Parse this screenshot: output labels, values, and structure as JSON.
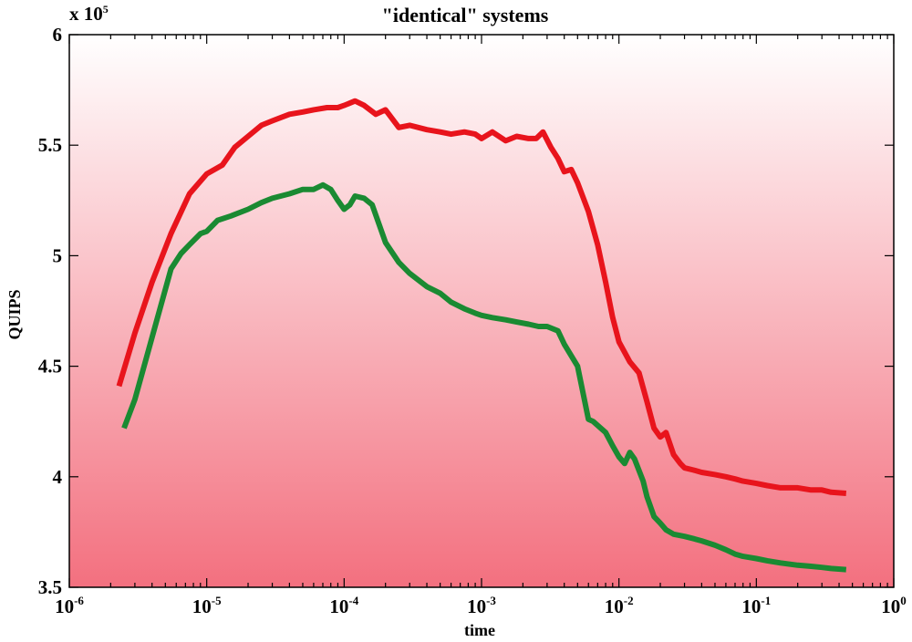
{
  "chart_data": {
    "type": "line",
    "title": "\"identical\" systems",
    "xlabel": "time",
    "ylabel": "QUIPS",
    "x_scale": "log",
    "xlim": [
      1e-06,
      1
    ],
    "ylim": [
      350000,
      600000
    ],
    "y_multiplier_label": {
      "base": "x 10",
      "exp": "5"
    },
    "x_ticks": [
      {
        "base": "10",
        "exp": "-6"
      },
      {
        "base": "10",
        "exp": "-5"
      },
      {
        "base": "10",
        "exp": "-4"
      },
      {
        "base": "10",
        "exp": "-3"
      },
      {
        "base": "10",
        "exp": "-2"
      },
      {
        "base": "10",
        "exp": "-1"
      },
      {
        "base": "10",
        "exp": "0"
      }
    ],
    "y_ticks": [
      "3.5",
      "4",
      "4.5",
      "5",
      "5.5",
      "6"
    ],
    "grid": false,
    "legend": "none",
    "background": {
      "top": "#ffffff",
      "bottom": "#f3707f"
    },
    "series": [
      {
        "color": "#e8141c",
        "x": [
          2.3e-06,
          3e-06,
          4e-06,
          5.5e-06,
          7.5e-06,
          1e-05,
          1.3e-05,
          1.6e-05,
          2e-05,
          2.5e-05,
          3e-05,
          4e-05,
          5e-05,
          6e-05,
          7.5e-05,
          9e-05,
          0.0001,
          0.00012,
          0.00014,
          0.00017,
          0.0002,
          0.00025,
          0.0003,
          0.0004,
          0.0005,
          0.0006,
          0.00075,
          0.0009,
          0.001,
          0.0012,
          0.0015,
          0.0018,
          0.0022,
          0.0025,
          0.0028,
          0.0032,
          0.0036,
          0.004,
          0.0045,
          0.005,
          0.006,
          0.007,
          0.008,
          0.009,
          0.01,
          0.012,
          0.014,
          0.016,
          0.018,
          0.02,
          0.022,
          0.025,
          0.028,
          0.03,
          0.035,
          0.04,
          0.05,
          0.06,
          0.07,
          0.08,
          0.1,
          0.12,
          0.15,
          0.2,
          0.25,
          0.3,
          0.35,
          0.45
        ],
        "values": [
          441000,
          465000,
          488000,
          510000,
          528000,
          537000,
          541000,
          549000,
          554000,
          559000,
          561000,
          564000,
          565000,
          566000,
          567000,
          567000,
          568000,
          570000,
          568000,
          564000,
          566000,
          558000,
          559000,
          557000,
          556000,
          555000,
          556000,
          555000,
          553000,
          556000,
          552000,
          554000,
          553000,
          553000,
          556000,
          549000,
          544000,
          538000,
          539000,
          533000,
          520000,
          505000,
          488000,
          472000,
          461000,
          452000,
          447000,
          434000,
          422000,
          418000,
          420000,
          410000,
          406000,
          404000,
          403000,
          402000,
          401000,
          400000,
          399000,
          398000,
          397000,
          396000,
          395000,
          395000,
          394000,
          394000,
          393000,
          392500
        ]
      },
      {
        "color": "#1a8a32",
        "x": [
          2.5e-06,
          3e-06,
          4e-06,
          5.5e-06,
          6.5e-06,
          7.5e-06,
          9e-06,
          1e-05,
          1.2e-05,
          1.5e-05,
          2e-05,
          2.5e-05,
          3e-05,
          4e-05,
          5e-05,
          6e-05,
          7e-05,
          8e-05,
          9e-05,
          0.0001,
          0.00011,
          0.00012,
          0.00014,
          0.00016,
          0.0002,
          0.00025,
          0.0003,
          0.0004,
          0.0005,
          0.0006,
          0.00075,
          0.0009,
          0.001,
          0.0012,
          0.0015,
          0.0018,
          0.0022,
          0.0026,
          0.003,
          0.0036,
          0.004,
          0.005,
          0.006,
          0.0065,
          0.008,
          0.009,
          0.01,
          0.011,
          0.012,
          0.013,
          0.015,
          0.016,
          0.018,
          0.02,
          0.022,
          0.025,
          0.03,
          0.035,
          0.04,
          0.05,
          0.06,
          0.07,
          0.08,
          0.1,
          0.12,
          0.15,
          0.2,
          0.25,
          0.3,
          0.35,
          0.45
        ],
        "values": [
          422000,
          435000,
          463000,
          494000,
          501000,
          505000,
          510000,
          511000,
          516000,
          518000,
          521000,
          524000,
          526000,
          528000,
          530000,
          530000,
          532000,
          530000,
          525000,
          521000,
          523000,
          527000,
          526000,
          523000,
          506000,
          497000,
          492000,
          486000,
          483000,
          479000,
          476000,
          474000,
          473000,
          472000,
          471000,
          470000,
          469000,
          468000,
          468000,
          466000,
          460000,
          450000,
          426000,
          425000,
          420000,
          414000,
          409000,
          406000,
          411000,
          408000,
          398000,
          391000,
          382000,
          379000,
          376000,
          374000,
          373000,
          372000,
          371000,
          369000,
          367000,
          365000,
          364000,
          363000,
          362000,
          361000,
          360000,
          359500,
          359000,
          358500,
          358000
        ]
      }
    ]
  }
}
